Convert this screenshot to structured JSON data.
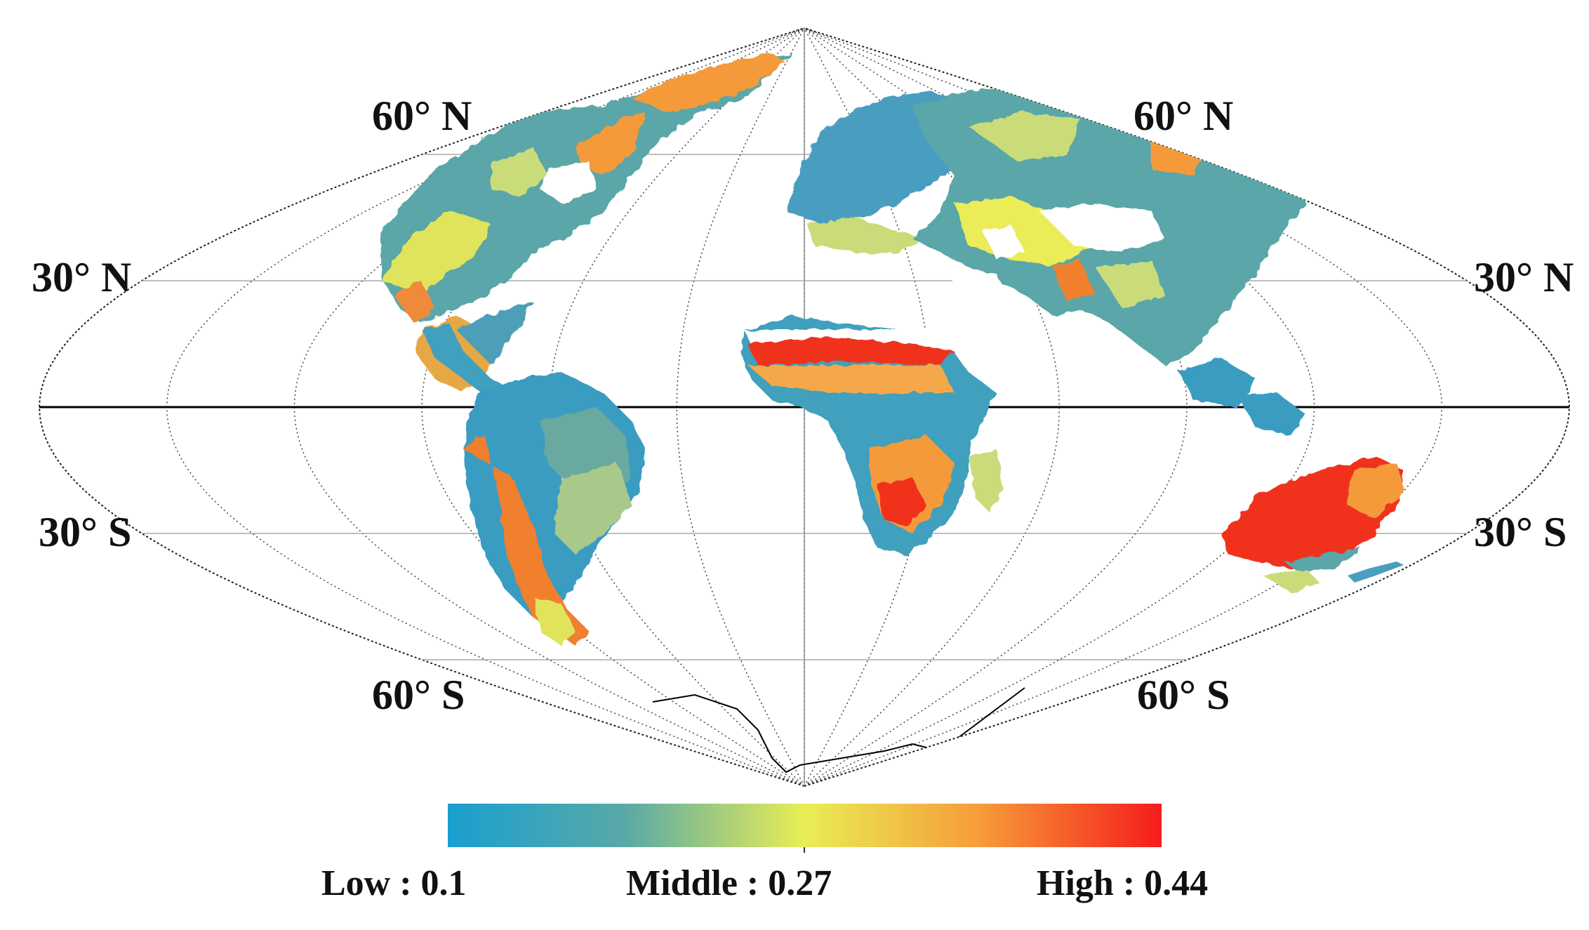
{
  "latitude_labels": {
    "n60_left": "60° N",
    "n60_right": "60° N",
    "n30_left": "30° N",
    "n30_right": "30° N",
    "s30_left": "30° S",
    "s30_right": "30° S",
    "s60_left": "60° S",
    "s60_right": "60° S"
  },
  "colorbar": {
    "low_label": "Low : 0.1",
    "middle_label": "Middle : 0.27",
    "high_label": "High : 0.44",
    "low_value": 0.1,
    "middle_value": 0.27,
    "high_value": 0.44,
    "colors": [
      "#1a9fd0",
      "#e9ee55",
      "#f51c1c"
    ]
  },
  "colors": {
    "low": "#1f9cc8",
    "low_mid": "#5aa6a8",
    "mid": "#c9dc79",
    "yellow": "#eaec58",
    "orange": "#f49a3a",
    "high": "#f0301e",
    "graticule": "#555555",
    "equator": "#000000"
  }
}
